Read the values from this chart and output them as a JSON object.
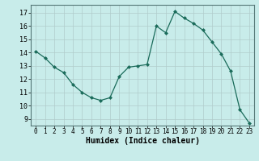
{
  "x": [
    0,
    1,
    2,
    3,
    4,
    5,
    6,
    7,
    8,
    9,
    10,
    11,
    12,
    13,
    14,
    15,
    16,
    17,
    18,
    19,
    20,
    21,
    22,
    23
  ],
  "y": [
    14.1,
    13.6,
    12.9,
    12.5,
    11.6,
    11.0,
    10.6,
    10.4,
    10.6,
    12.2,
    12.9,
    13.0,
    13.1,
    16.0,
    15.5,
    17.1,
    16.6,
    16.2,
    15.7,
    14.8,
    13.9,
    12.6,
    9.7,
    8.7
  ],
  "line_color": "#1a6b5a",
  "marker": "D",
  "marker_size": 2,
  "bg_color": "#c8ecea",
  "grid_color": "#b0cccb",
  "xlabel": "Humidex (Indice chaleur)",
  "xlim": [
    -0.5,
    23.5
  ],
  "ylim": [
    8.5,
    17.6
  ],
  "yticks": [
    9,
    10,
    11,
    12,
    13,
    14,
    15,
    16,
    17
  ],
  "xticks": [
    0,
    1,
    2,
    3,
    4,
    5,
    6,
    7,
    8,
    9,
    10,
    11,
    12,
    13,
    14,
    15,
    16,
    17,
    18,
    19,
    20,
    21,
    22,
    23
  ],
  "tick_fontsize": 5.5,
  "xlabel_fontsize": 7,
  "ytick_fontsize": 6
}
